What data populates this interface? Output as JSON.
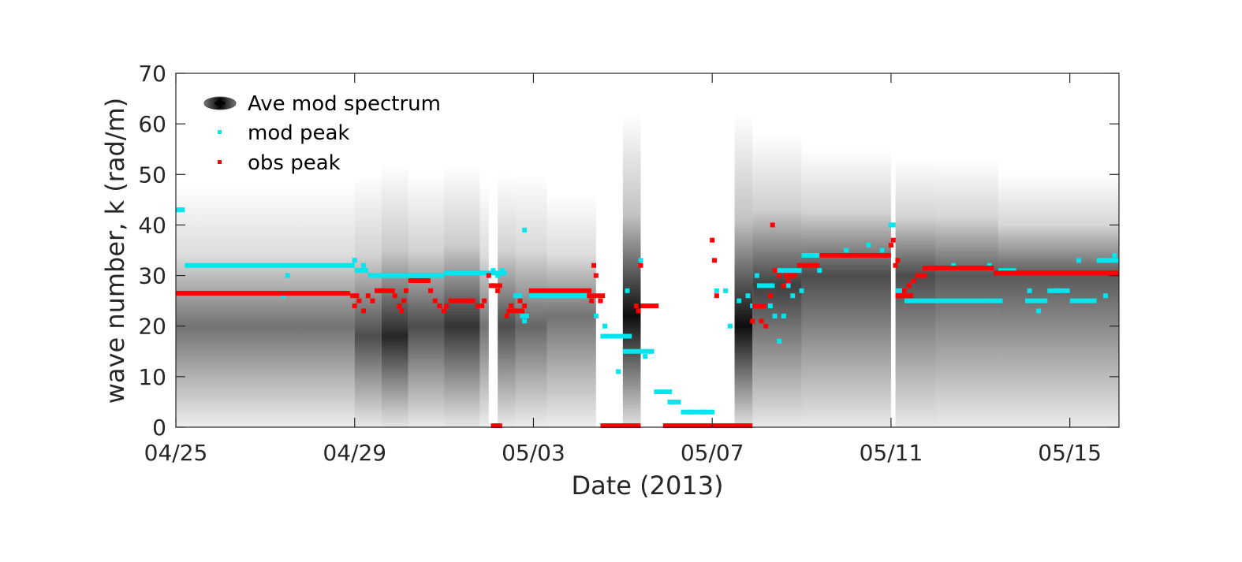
{
  "chart_data": {
    "type": "scatter",
    "xlabel": "Date (2013)",
    "ylabel": "wave number, k (rad/m)",
    "x_start": "04/25",
    "xlim_days": [
      0,
      21.1
    ],
    "ylim": [
      0,
      70
    ],
    "x_ticks": [
      {
        "day": 0,
        "label": "04/25"
      },
      {
        "day": 4,
        "label": "04/29"
      },
      {
        "day": 8,
        "label": "05/03"
      },
      {
        "day": 12,
        "label": "05/07"
      },
      {
        "day": 16,
        "label": "05/11"
      },
      {
        "day": 20,
        "label": "05/15"
      }
    ],
    "y_ticks": [
      0,
      10,
      20,
      30,
      40,
      50,
      60,
      70
    ],
    "grid": false,
    "legend_position": "top-left",
    "legend": [
      {
        "label": "Ave mod spectrum",
        "kind": "spectrum"
      },
      {
        "label": "mod peak",
        "kind": "marker",
        "color": "#00e5ee"
      },
      {
        "label": "obs peak",
        "kind": "marker",
        "color": "#ff0000"
      }
    ],
    "spectrum": [
      {
        "x0": 0.0,
        "x1": 4.0,
        "center": 20,
        "top": 48,
        "dark": 0.55
      },
      {
        "x0": 4.0,
        "x1": 4.6,
        "center": 18,
        "top": 50,
        "dark": 0.7
      },
      {
        "x0": 4.6,
        "x1": 5.2,
        "center": 18,
        "top": 52,
        "dark": 0.85
      },
      {
        "x0": 5.2,
        "x1": 6.0,
        "center": 20,
        "top": 50,
        "dark": 0.7
      },
      {
        "x0": 6.0,
        "x1": 6.8,
        "center": 20,
        "top": 52,
        "dark": 0.8
      },
      {
        "x0": 6.8,
        "x1": 7.0,
        "center": 20,
        "top": 48,
        "dark": 0.55
      },
      {
        "x0": 7.2,
        "x1": 7.6,
        "center": 20,
        "top": 50,
        "dark": 0.7
      },
      {
        "x0": 7.6,
        "x1": 8.3,
        "center": 20,
        "top": 50,
        "dark": 0.6
      },
      {
        "x0": 8.3,
        "x1": 9.4,
        "center": 22,
        "top": 46,
        "dark": 0.55
      },
      {
        "x0": 10.0,
        "x1": 10.4,
        "center": 22,
        "top": 62,
        "dark": 0.95
      },
      {
        "x0": 12.5,
        "x1": 12.9,
        "center": 20,
        "top": 62,
        "dark": 0.95
      },
      {
        "x0": 12.9,
        "x1": 14.0,
        "center": 28,
        "top": 58,
        "dark": 0.75
      },
      {
        "x0": 14.0,
        "x1": 16.0,
        "center": 30,
        "top": 55,
        "dark": 0.7
      },
      {
        "x0": 16.1,
        "x1": 17.0,
        "center": 30,
        "top": 53,
        "dark": 0.7
      },
      {
        "x0": 17.0,
        "x1": 18.4,
        "center": 30,
        "top": 53,
        "dark": 0.65
      },
      {
        "x0": 18.4,
        "x1": 21.1,
        "center": 30,
        "top": 50,
        "dark": 0.65
      }
    ],
    "series": [
      {
        "name": "mod peak",
        "color": "#00e5ee",
        "segments": [
          {
            "x0": 0.0,
            "x1": 0.2,
            "y": 43
          },
          {
            "x0": 0.2,
            "x1": 4.0,
            "y": 32
          },
          {
            "x0": 4.0,
            "x1": 4.3,
            "y": 31
          },
          {
            "x0": 4.3,
            "x1": 6.0,
            "y": 30
          },
          {
            "x0": 6.0,
            "x1": 7.4,
            "y": 30.5
          },
          {
            "x0": 7.7,
            "x1": 7.9,
            "y": 22
          },
          {
            "x0": 7.9,
            "x1": 9.4,
            "y": 26
          },
          {
            "x0": 9.0,
            "x1": 9.2,
            "y": 26
          },
          {
            "x0": 9.5,
            "x1": 9.7,
            "y": 18
          },
          {
            "x0": 9.7,
            "x1": 10.2,
            "y": 18
          },
          {
            "x0": 10.0,
            "x1": 10.7,
            "y": 15
          },
          {
            "x0": 10.7,
            "x1": 11.1,
            "y": 7
          },
          {
            "x0": 11.0,
            "x1": 11.3,
            "y": 5
          },
          {
            "x0": 11.3,
            "x1": 12.0,
            "y": 3
          },
          {
            "x0": 13.0,
            "x1": 13.4,
            "y": 28
          },
          {
            "x0": 13.4,
            "x1": 14.0,
            "y": 31
          },
          {
            "x0": 14.0,
            "x1": 16.0,
            "y": 34
          },
          {
            "x0": 16.1,
            "x1": 16.3,
            "y": 27
          },
          {
            "x0": 16.3,
            "x1": 18.1,
            "y": 25
          },
          {
            "x0": 18.1,
            "x1": 18.5,
            "y": 25
          },
          {
            "x0": 18.4,
            "x1": 18.8,
            "y": 31
          },
          {
            "x0": 19.0,
            "x1": 19.5,
            "y": 25
          },
          {
            "x0": 19.5,
            "x1": 20.0,
            "y": 27
          },
          {
            "x0": 20.0,
            "x1": 20.6,
            "y": 25
          },
          {
            "x0": 20.6,
            "x1": 21.1,
            "y": 33
          }
        ],
        "points": [
          [
            0.05,
            43
          ],
          [
            4.0,
            33
          ],
          [
            4.1,
            31
          ],
          [
            4.2,
            32
          ],
          [
            2.4,
            26
          ],
          [
            2.5,
            30
          ],
          [
            7.1,
            31
          ],
          [
            7.2,
            30
          ],
          [
            7.3,
            31
          ],
          [
            7.6,
            26
          ],
          [
            7.7,
            26
          ],
          [
            7.8,
            21
          ],
          [
            7.8,
            39
          ],
          [
            9.4,
            22
          ],
          [
            9.6,
            20
          ],
          [
            9.9,
            11
          ],
          [
            10.1,
            27
          ],
          [
            10.4,
            33
          ],
          [
            10.5,
            14
          ],
          [
            11.5,
            3
          ],
          [
            11.8,
            3
          ],
          [
            12.0,
            3
          ],
          [
            12.1,
            27
          ],
          [
            12.3,
            27
          ],
          [
            12.4,
            20
          ],
          [
            12.6,
            25
          ],
          [
            12.8,
            26
          ],
          [
            12.9,
            24
          ],
          [
            13.0,
            30
          ],
          [
            13.2,
            20
          ],
          [
            13.3,
            24
          ],
          [
            13.4,
            22
          ],
          [
            13.5,
            17
          ],
          [
            13.6,
            22
          ],
          [
            13.7,
            28
          ],
          [
            13.8,
            26
          ],
          [
            14.0,
            27
          ],
          [
            14.4,
            31
          ],
          [
            15.0,
            35
          ],
          [
            15.5,
            36
          ],
          [
            15.8,
            35
          ],
          [
            16.0,
            40
          ],
          [
            16.05,
            40
          ],
          [
            17.4,
            32
          ],
          [
            18.2,
            32
          ],
          [
            19.1,
            27
          ],
          [
            19.3,
            23
          ],
          [
            19.7,
            27
          ],
          [
            20.2,
            33
          ],
          [
            20.7,
            33
          ],
          [
            20.8,
            26
          ],
          [
            21.0,
            34
          ]
        ]
      },
      {
        "name": "obs peak",
        "color": "#ff0000",
        "segments": [
          {
            "x0": 0.0,
            "x1": 3.9,
            "y": 26.5
          },
          {
            "x0": 3.9,
            "x1": 4.1,
            "y": 26
          },
          {
            "x0": 4.5,
            "x1": 4.9,
            "y": 27
          },
          {
            "x0": 5.2,
            "x1": 5.7,
            "y": 29
          },
          {
            "x0": 6.1,
            "x1": 6.7,
            "y": 25
          },
          {
            "x0": 6.7,
            "x1": 6.9,
            "y": 24
          },
          {
            "x0": 7.0,
            "x1": 7.3,
            "y": 28
          },
          {
            "x0": 7.05,
            "x1": 7.3,
            "y": 0.3
          },
          {
            "x0": 7.4,
            "x1": 7.8,
            "y": 23
          },
          {
            "x0": 7.9,
            "x1": 9.3,
            "y": 27
          },
          {
            "x0": 9.3,
            "x1": 9.6,
            "y": 26
          },
          {
            "x0": 9.5,
            "x1": 10.4,
            "y": 0.3
          },
          {
            "x0": 10.4,
            "x1": 10.8,
            "y": 24
          },
          {
            "x0": 10.9,
            "x1": 12.5,
            "y": 0.3
          },
          {
            "x0": 12.5,
            "x1": 12.9,
            "y": 0.3
          },
          {
            "x0": 12.9,
            "x1": 13.2,
            "y": 24
          },
          {
            "x0": 13.6,
            "x1": 13.9,
            "y": 30
          },
          {
            "x0": 13.9,
            "x1": 14.4,
            "y": 32
          },
          {
            "x0": 14.4,
            "x1": 16.0,
            "y": 34
          },
          {
            "x0": 16.1,
            "x1": 16.5,
            "y": 26
          },
          {
            "x0": 16.6,
            "x1": 16.8,
            "y": 30
          },
          {
            "x0": 16.7,
            "x1": 18.3,
            "y": 31.5
          },
          {
            "x0": 18.3,
            "x1": 21.1,
            "y": 30.5
          }
        ],
        "points": [
          [
            4.0,
            24
          ],
          [
            4.1,
            25
          ],
          [
            4.2,
            23
          ],
          [
            4.3,
            26
          ],
          [
            4.4,
            25
          ],
          [
            4.5,
            27
          ],
          [
            4.6,
            27
          ],
          [
            4.9,
            26
          ],
          [
            5.0,
            24
          ],
          [
            5.05,
            23
          ],
          [
            5.1,
            25
          ],
          [
            5.15,
            27
          ],
          [
            5.7,
            27
          ],
          [
            5.8,
            25
          ],
          [
            5.9,
            24
          ],
          [
            6.0,
            23
          ],
          [
            6.05,
            24
          ],
          [
            6.9,
            25
          ],
          [
            7.0,
            30
          ],
          [
            7.1,
            28
          ],
          [
            7.2,
            27
          ],
          [
            7.4,
            22
          ],
          [
            7.5,
            24
          ],
          [
            7.6,
            23
          ],
          [
            7.7,
            25
          ],
          [
            7.8,
            24
          ],
          [
            9.25,
            26
          ],
          [
            9.3,
            25
          ],
          [
            9.35,
            32
          ],
          [
            9.4,
            30
          ],
          [
            9.5,
            25
          ],
          [
            10.3,
            24
          ],
          [
            10.35,
            23
          ],
          [
            10.4,
            32
          ],
          [
            10.5,
            24
          ],
          [
            12.0,
            37
          ],
          [
            12.05,
            33
          ],
          [
            12.1,
            26
          ],
          [
            12.9,
            21
          ],
          [
            13.0,
            24
          ],
          [
            13.1,
            21
          ],
          [
            13.2,
            20
          ],
          [
            13.3,
            26
          ],
          [
            13.35,
            40
          ],
          [
            13.4,
            31
          ],
          [
            13.5,
            30
          ],
          [
            13.6,
            28
          ],
          [
            13.7,
            29
          ],
          [
            13.8,
            30
          ],
          [
            15.9,
            34
          ],
          [
            16.0,
            36
          ],
          [
            16.05,
            37
          ],
          [
            16.1,
            32
          ],
          [
            16.15,
            33
          ],
          [
            16.2,
            26
          ],
          [
            16.3,
            27
          ],
          [
            16.4,
            28
          ],
          [
            16.5,
            29
          ],
          [
            16.6,
            30
          ]
        ]
      }
    ]
  }
}
